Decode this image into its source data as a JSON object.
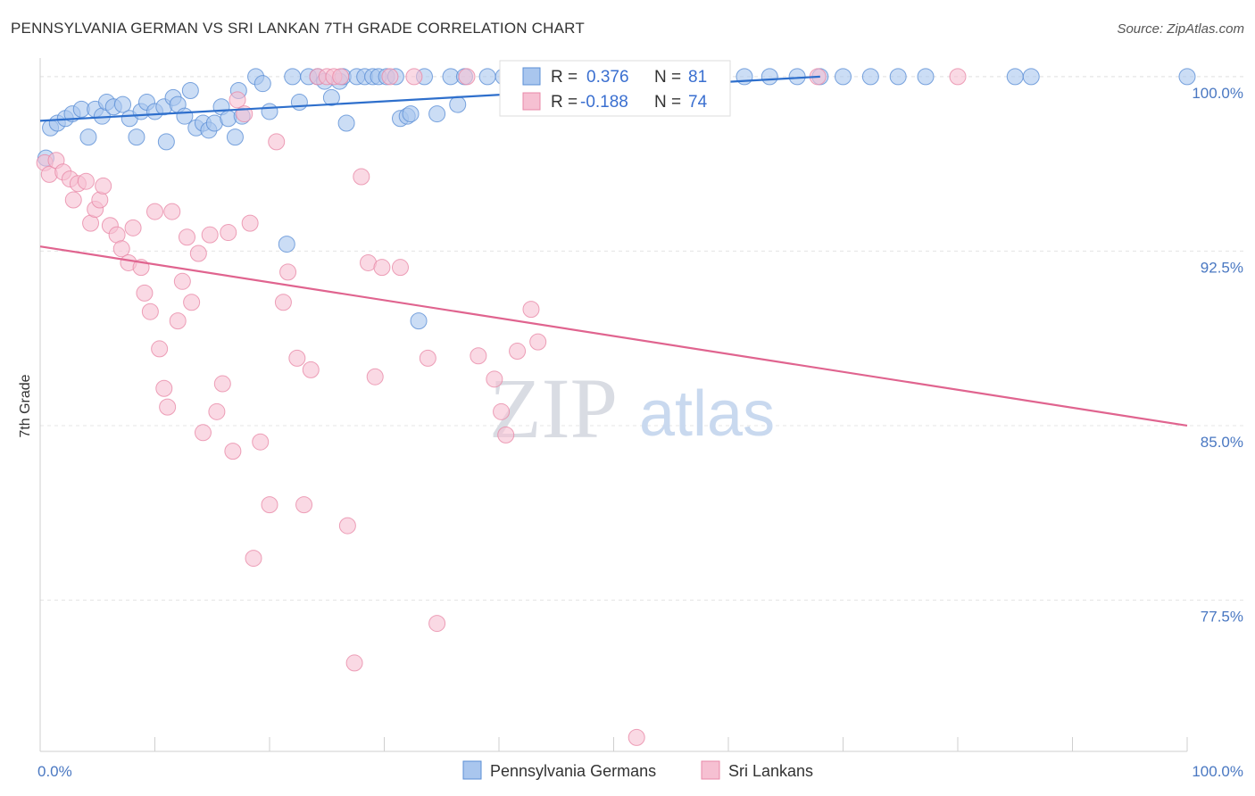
{
  "title": "PENNSYLVANIA GERMAN VS SRI LANKAN 7TH GRADE CORRELATION CHART",
  "source": "Source: ZipAtlas.com",
  "watermark": {
    "zip": "ZIP",
    "atlas": "atlas"
  },
  "colors": {
    "blue": "#5b8fd6",
    "blue_fill": "#a9c6ee",
    "blue_line": "#2e6fcc",
    "pink": "#e889a8",
    "pink_fill": "#f6c0d2",
    "pink_line": "#e0648f",
    "grid": "#e4e4e4",
    "axis_label": "#4a78c2"
  },
  "chart_data": {
    "type": "scatter",
    "title": "PENNSYLVANIA GERMAN VS SRI LANKAN 7TH GRADE CORRELATION CHART",
    "xlabel": "",
    "ylabel": "7th Grade",
    "xlim": [
      0,
      100
    ],
    "ylim": [
      71,
      100.8
    ],
    "x_tick_labels": [
      "0.0%",
      "100.0%"
    ],
    "y_ticks": [
      77.5,
      85.0,
      92.5,
      100.0
    ],
    "y_tick_labels": [
      "77.5%",
      "85.0%",
      "92.5%",
      "100.0%"
    ],
    "grid": "horizontal dashed",
    "legend": {
      "position": "top-center",
      "entries": [
        {
          "r_label": "R =",
          "r_value": "0.376",
          "n_label": "N =",
          "n_value": "81"
        },
        {
          "r_label": "R =",
          "r_value": "-0.188",
          "n_label": "N =",
          "n_value": "74"
        }
      ]
    },
    "series": [
      {
        "name": "Pennsylvania Germans",
        "trend": {
          "x": [
            0,
            68
          ],
          "y": [
            98.1,
            100.0
          ]
        },
        "points": [
          [
            0.5,
            96.5
          ],
          [
            0.9,
            97.8
          ],
          [
            1.5,
            98.0
          ],
          [
            2.2,
            98.2
          ],
          [
            2.8,
            98.4
          ],
          [
            3.6,
            98.6
          ],
          [
            4.2,
            97.4
          ],
          [
            4.8,
            98.6
          ],
          [
            5.4,
            98.3
          ],
          [
            5.8,
            98.9
          ],
          [
            6.4,
            98.7
          ],
          [
            7.2,
            98.8
          ],
          [
            7.8,
            98.2
          ],
          [
            8.4,
            97.4
          ],
          [
            8.8,
            98.5
          ],
          [
            9.3,
            98.9
          ],
          [
            10.0,
            98.5
          ],
          [
            10.8,
            98.7
          ],
          [
            11.0,
            97.2
          ],
          [
            11.6,
            99.1
          ],
          [
            12.0,
            98.8
          ],
          [
            12.6,
            98.3
          ],
          [
            13.1,
            99.4
          ],
          [
            13.6,
            97.8
          ],
          [
            14.2,
            98.0
          ],
          [
            14.7,
            97.7
          ],
          [
            15.2,
            98.0
          ],
          [
            15.8,
            98.7
          ],
          [
            16.4,
            98.2
          ],
          [
            17.0,
            97.4
          ],
          [
            17.3,
            99.4
          ],
          [
            17.6,
            98.3
          ],
          [
            18.8,
            100.0
          ],
          [
            19.4,
            99.7
          ],
          [
            20.0,
            98.5
          ],
          [
            21.5,
            92.8
          ],
          [
            22.0,
            100.0
          ],
          [
            22.6,
            98.9
          ],
          [
            23.4,
            100.0
          ],
          [
            24.2,
            100.0
          ],
          [
            24.8,
            99.8
          ],
          [
            25.4,
            99.1
          ],
          [
            26.1,
            99.8
          ],
          [
            26.4,
            100.0
          ],
          [
            26.7,
            98.0
          ],
          [
            27.6,
            100.0
          ],
          [
            28.3,
            100.0
          ],
          [
            29.0,
            100.0
          ],
          [
            29.5,
            100.0
          ],
          [
            30.2,
            100.0
          ],
          [
            31.0,
            100.0
          ],
          [
            31.4,
            98.2
          ],
          [
            32.0,
            98.3
          ],
          [
            32.3,
            98.4
          ],
          [
            33.0,
            89.5
          ],
          [
            33.5,
            100.0
          ],
          [
            34.6,
            98.4
          ],
          [
            35.8,
            100.0
          ],
          [
            36.4,
            98.8
          ],
          [
            37.0,
            100.0
          ],
          [
            39.0,
            100.0
          ],
          [
            40.4,
            100.0
          ],
          [
            42.8,
            100.0
          ],
          [
            45.2,
            100.0
          ],
          [
            47.5,
            100.0
          ],
          [
            49.8,
            100.0
          ],
          [
            52.0,
            100.0
          ],
          [
            54.4,
            100.0
          ],
          [
            56.8,
            100.0
          ],
          [
            59.0,
            100.0
          ],
          [
            61.4,
            100.0
          ],
          [
            63.6,
            100.0
          ],
          [
            66.0,
            100.0
          ],
          [
            68.0,
            100.0
          ],
          [
            70.0,
            100.0
          ],
          [
            72.4,
            100.0
          ],
          [
            74.8,
            100.0
          ],
          [
            77.2,
            100.0
          ],
          [
            85.0,
            100.0
          ],
          [
            86.4,
            100.0
          ],
          [
            100.0,
            100.0
          ]
        ]
      },
      {
        "name": "Sri Lankans",
        "trend": {
          "x": [
            0,
            100
          ],
          "y": [
            92.7,
            85.0
          ]
        },
        "points": [
          [
            0.4,
            96.3
          ],
          [
            0.8,
            95.8
          ],
          [
            1.4,
            96.4
          ],
          [
            2.0,
            95.9
          ],
          [
            2.6,
            95.6
          ],
          [
            2.9,
            94.7
          ],
          [
            3.3,
            95.4
          ],
          [
            4.0,
            95.5
          ],
          [
            4.4,
            93.7
          ],
          [
            4.8,
            94.3
          ],
          [
            5.2,
            94.7
          ],
          [
            5.5,
            95.3
          ],
          [
            6.1,
            93.6
          ],
          [
            6.7,
            93.2
          ],
          [
            7.1,
            92.6
          ],
          [
            7.7,
            92.0
          ],
          [
            8.1,
            93.5
          ],
          [
            8.8,
            91.8
          ],
          [
            9.1,
            90.7
          ],
          [
            9.6,
            89.9
          ],
          [
            10.0,
            94.2
          ],
          [
            10.4,
            88.3
          ],
          [
            10.8,
            86.6
          ],
          [
            11.1,
            85.8
          ],
          [
            11.5,
            94.2
          ],
          [
            12.0,
            89.5
          ],
          [
            12.4,
            91.2
          ],
          [
            12.8,
            93.1
          ],
          [
            13.2,
            90.3
          ],
          [
            13.8,
            92.4
          ],
          [
            14.2,
            84.7
          ],
          [
            14.8,
            93.2
          ],
          [
            15.4,
            85.6
          ],
          [
            15.9,
            86.8
          ],
          [
            16.4,
            93.3
          ],
          [
            16.8,
            83.9
          ],
          [
            17.2,
            99.0
          ],
          [
            17.8,
            98.4
          ],
          [
            18.3,
            93.7
          ],
          [
            18.6,
            79.3
          ],
          [
            19.2,
            84.3
          ],
          [
            20.0,
            81.6
          ],
          [
            20.6,
            97.2
          ],
          [
            21.2,
            90.3
          ],
          [
            21.6,
            91.6
          ],
          [
            22.4,
            87.9
          ],
          [
            23.0,
            81.6
          ],
          [
            23.6,
            87.4
          ],
          [
            24.2,
            100.0
          ],
          [
            25.0,
            100.0
          ],
          [
            25.6,
            100.0
          ],
          [
            26.2,
            100.0
          ],
          [
            26.8,
            80.7
          ],
          [
            27.4,
            74.8
          ],
          [
            28.0,
            95.7
          ],
          [
            28.6,
            92.0
          ],
          [
            29.2,
            87.1
          ],
          [
            29.8,
            91.8
          ],
          [
            30.5,
            100.0
          ],
          [
            31.4,
            91.8
          ],
          [
            32.6,
            100.0
          ],
          [
            33.8,
            87.9
          ],
          [
            34.6,
            76.5
          ],
          [
            37.2,
            100.0
          ],
          [
            38.2,
            88.0
          ],
          [
            39.6,
            87.0
          ],
          [
            40.2,
            85.6
          ],
          [
            40.6,
            84.6
          ],
          [
            41.6,
            88.2
          ],
          [
            42.8,
            90.0
          ],
          [
            43.4,
            88.6
          ],
          [
            52.0,
            71.6
          ],
          [
            67.8,
            100.0
          ],
          [
            80.0,
            100.0
          ]
        ]
      }
    ]
  }
}
